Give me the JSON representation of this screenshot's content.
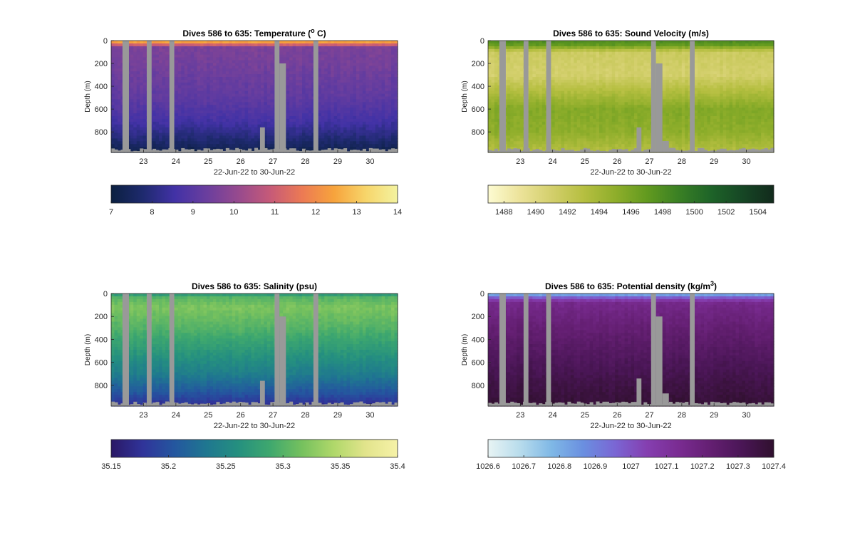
{
  "figure": {
    "background": "#ffffff",
    "gap_color": "#999999",
    "axis_color": "#262626"
  },
  "chart_data": [
    {
      "type": "heatmap",
      "variable": "temperature",
      "title": "Dives 586 to 635: Temperature (",
      "title_sup": "o",
      "title_tail": " C)",
      "xlabel": "22-Jun-22 to 30-Jun-22",
      "ylabel": "Depth (m)",
      "x_start": "22-Jun-22",
      "x_end": "30-Jun-22",
      "xlim": [
        22.0,
        30.85
      ],
      "xticks": [
        23,
        24,
        25,
        26,
        27,
        28,
        29,
        30
      ],
      "ylim": [
        0,
        980
      ],
      "y_reversed": true,
      "yticks": [
        0,
        200,
        400,
        600,
        800
      ],
      "gaps": [
        [
          22.35,
          22.55,
          0
        ],
        [
          23.1,
          23.25,
          0
        ],
        [
          23.8,
          23.95,
          0
        ],
        [
          27.05,
          27.2,
          0
        ],
        [
          27.2,
          27.4,
          200
        ],
        [
          28.25,
          28.4,
          0
        ],
        [
          26.6,
          26.75,
          760
        ]
      ],
      "colorbar": {
        "range": [
          7,
          14
        ],
        "ticks": [
          "7",
          "8",
          "9",
          "10",
          "11",
          "12",
          "13",
          "14"
        ],
        "colors": [
          "#0b2040",
          "#1e2a6e",
          "#4232a6",
          "#6a3e9e",
          "#974a8e",
          "#c65a78",
          "#ec7a54",
          "#f7a33c",
          "#f7d56a",
          "#f3f3a0"
        ]
      },
      "profile": [
        [
          0,
          13.0
        ],
        [
          30,
          11.5
        ],
        [
          60,
          9.6
        ],
        [
          200,
          9.5
        ],
        [
          500,
          9.1
        ],
        [
          700,
          8.6
        ],
        [
          850,
          7.9
        ],
        [
          980,
          7.2
        ]
      ]
    },
    {
      "type": "heatmap",
      "variable": "sound_velocity",
      "title": "Dives 586 to 635: Sound Velocity (m/s)",
      "xlabel": "22-Jun-22 to 30-Jun-22",
      "ylabel": "Depth (m)",
      "x_start": "22-Jun-22",
      "x_end": "30-Jun-22",
      "xlim": [
        22.0,
        30.85
      ],
      "xticks": [
        23,
        24,
        25,
        26,
        27,
        28,
        29,
        30
      ],
      "ylim": [
        0,
        980
      ],
      "y_reversed": true,
      "yticks": [
        0,
        200,
        400,
        600,
        800
      ],
      "gaps": [
        [
          22.35,
          22.55,
          0
        ],
        [
          23.1,
          23.25,
          0
        ],
        [
          23.8,
          23.95,
          0
        ],
        [
          27.05,
          27.2,
          0
        ],
        [
          27.2,
          27.4,
          200
        ],
        [
          28.25,
          28.4,
          0
        ],
        [
          26.6,
          26.75,
          760
        ],
        [
          27.4,
          27.6,
          880
        ],
        [
          27.6,
          27.8,
          940
        ]
      ],
      "colorbar": {
        "range": [
          1487,
          1505
        ],
        "ticks": [
          "1488",
          "1490",
          "1492",
          "1494",
          "1496",
          "1498",
          "1500",
          "1502",
          "1504"
        ],
        "colors": [
          "#fdfbd2",
          "#ece39a",
          "#d3cf6c",
          "#b6bf41",
          "#8fae2b",
          "#629a1f",
          "#3a8024",
          "#1e6428",
          "#164725",
          "#122a1c"
        ]
      },
      "profile": [
        [
          0,
          1498.0
        ],
        [
          40,
          1497.0
        ],
        [
          100,
          1491.5
        ],
        [
          300,
          1491.0
        ],
        [
          600,
          1495.5
        ],
        [
          800,
          1495.0
        ],
        [
          980,
          1493.0
        ]
      ]
    },
    {
      "type": "heatmap",
      "variable": "salinity",
      "title": "Dives 586 to 635: Salinity (psu)",
      "xlabel": "22-Jun-22 to 30-Jun-22",
      "ylabel": "Depth (m)",
      "x_start": "22-Jun-22",
      "x_end": "30-Jun-22",
      "xlim": [
        22.0,
        30.85
      ],
      "xticks": [
        23,
        24,
        25,
        26,
        27,
        28,
        29,
        30
      ],
      "ylim": [
        0,
        980
      ],
      "y_reversed": true,
      "yticks": [
        0,
        200,
        400,
        600,
        800
      ],
      "gaps": [
        [
          22.35,
          22.55,
          0
        ],
        [
          23.1,
          23.25,
          0
        ],
        [
          23.8,
          23.95,
          0
        ],
        [
          27.05,
          27.2,
          0
        ],
        [
          27.2,
          27.4,
          200
        ],
        [
          28.25,
          28.4,
          0
        ],
        [
          26.6,
          26.75,
          760
        ]
      ],
      "colorbar": {
        "range": [
          35.15,
          35.4
        ],
        "ticks": [
          "35.15",
          "35.2",
          "35.25",
          "35.3",
          "35.35",
          "35.4"
        ],
        "colors": [
          "#2a1866",
          "#30349a",
          "#24579f",
          "#1f7790",
          "#25907f",
          "#3fa86e",
          "#76c15e",
          "#b0d86a",
          "#e2e48c",
          "#f6f2a8"
        ]
      },
      "profile": [
        [
          0,
          35.26
        ],
        [
          30,
          35.3
        ],
        [
          120,
          35.32
        ],
        [
          300,
          35.3
        ],
        [
          500,
          35.27
        ],
        [
          700,
          35.24
        ],
        [
          880,
          35.2
        ],
        [
          980,
          35.17
        ]
      ]
    },
    {
      "type": "heatmap",
      "variable": "potential_density",
      "title": "Dives 586 to 635: Potential density (kg/m",
      "title_sup": "3",
      "title_tail": ")",
      "xlabel": "22-Jun-22 to 30-Jun-22",
      "ylabel": "Depth (m)",
      "x_start": "22-Jun-22",
      "x_end": "30-Jun-22",
      "xlim": [
        22.0,
        30.85
      ],
      "xticks": [
        23,
        24,
        25,
        26,
        27,
        28,
        29,
        30
      ],
      "ylim": [
        0,
        980
      ],
      "y_reversed": true,
      "yticks": [
        0,
        200,
        400,
        600,
        800
      ],
      "gaps": [
        [
          22.35,
          22.55,
          0
        ],
        [
          23.1,
          23.25,
          0
        ],
        [
          23.8,
          23.95,
          0
        ],
        [
          27.05,
          27.2,
          0
        ],
        [
          27.2,
          27.4,
          200
        ],
        [
          28.25,
          28.4,
          0
        ],
        [
          26.6,
          26.75,
          740
        ],
        [
          27.4,
          27.6,
          870
        ]
      ],
      "colorbar": {
        "range": [
          1026.6,
          1027.4
        ],
        "ticks": [
          "1026.6",
          "1026.7",
          "1026.8",
          "1026.9",
          "1027",
          "1027.1",
          "1027.2",
          "1027.3",
          "1027.4"
        ],
        "colors": [
          "#e8f4f4",
          "#b8dcec",
          "#7fb8e6",
          "#6a8fe0",
          "#7a66d4",
          "#853fb0",
          "#7a2c92",
          "#641f72",
          "#4a1656",
          "#30102e"
        ]
      },
      "profile": [
        [
          0,
          1026.75
        ],
        [
          30,
          1026.95
        ],
        [
          80,
          1027.15
        ],
        [
          300,
          1027.22
        ],
        [
          600,
          1027.3
        ],
        [
          800,
          1027.35
        ],
        [
          980,
          1027.38
        ]
      ]
    }
  ]
}
